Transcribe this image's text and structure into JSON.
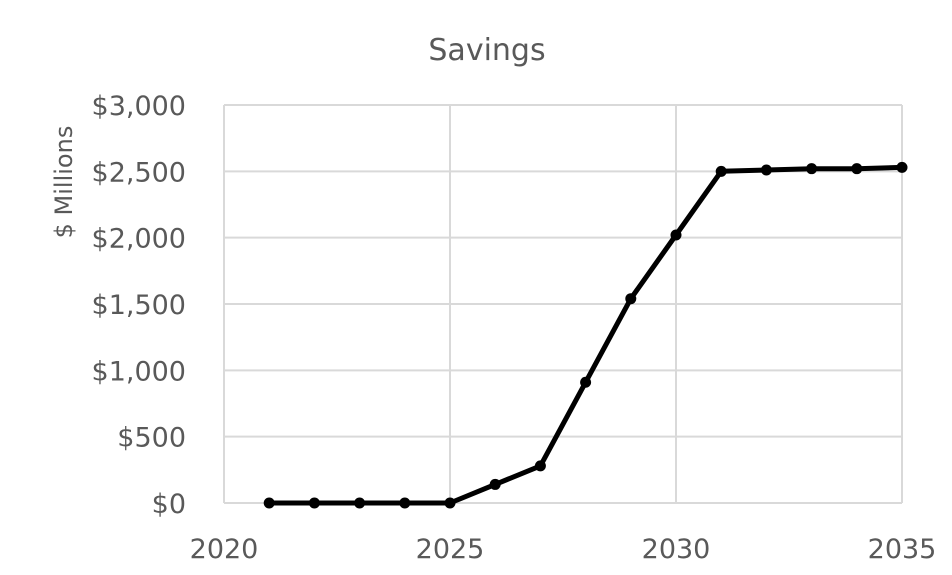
{
  "chart_data": {
    "type": "line",
    "title": "Savings",
    "xlabel": "",
    "ylabel": "$ Millions",
    "xlim": [
      2020,
      2035
    ],
    "ylim": [
      0,
      3000
    ],
    "x_ticks": [
      2020,
      2025,
      2030,
      2035
    ],
    "x_tick_labels": [
      "2020",
      "2025",
      "2030",
      "2035"
    ],
    "y_ticks": [
      0,
      500,
      1000,
      1500,
      2000,
      2500,
      3000
    ],
    "y_tick_labels": [
      "$0",
      "$500",
      "$1,000",
      "$1,500",
      "$2,000",
      "$2,500",
      "$3,000"
    ],
    "grid": true,
    "legend": "none",
    "series": [
      {
        "color": "#000000",
        "x": [
          2021,
          2022,
          2023,
          2024,
          2025,
          2026,
          2027,
          2028,
          2029,
          2030,
          2031,
          2032,
          2033,
          2034,
          2035
        ],
        "y": [
          0,
          0,
          0,
          0,
          0,
          140,
          280,
          910,
          1540,
          2020,
          2500,
          2510,
          2520,
          2520,
          2530
        ]
      }
    ]
  }
}
